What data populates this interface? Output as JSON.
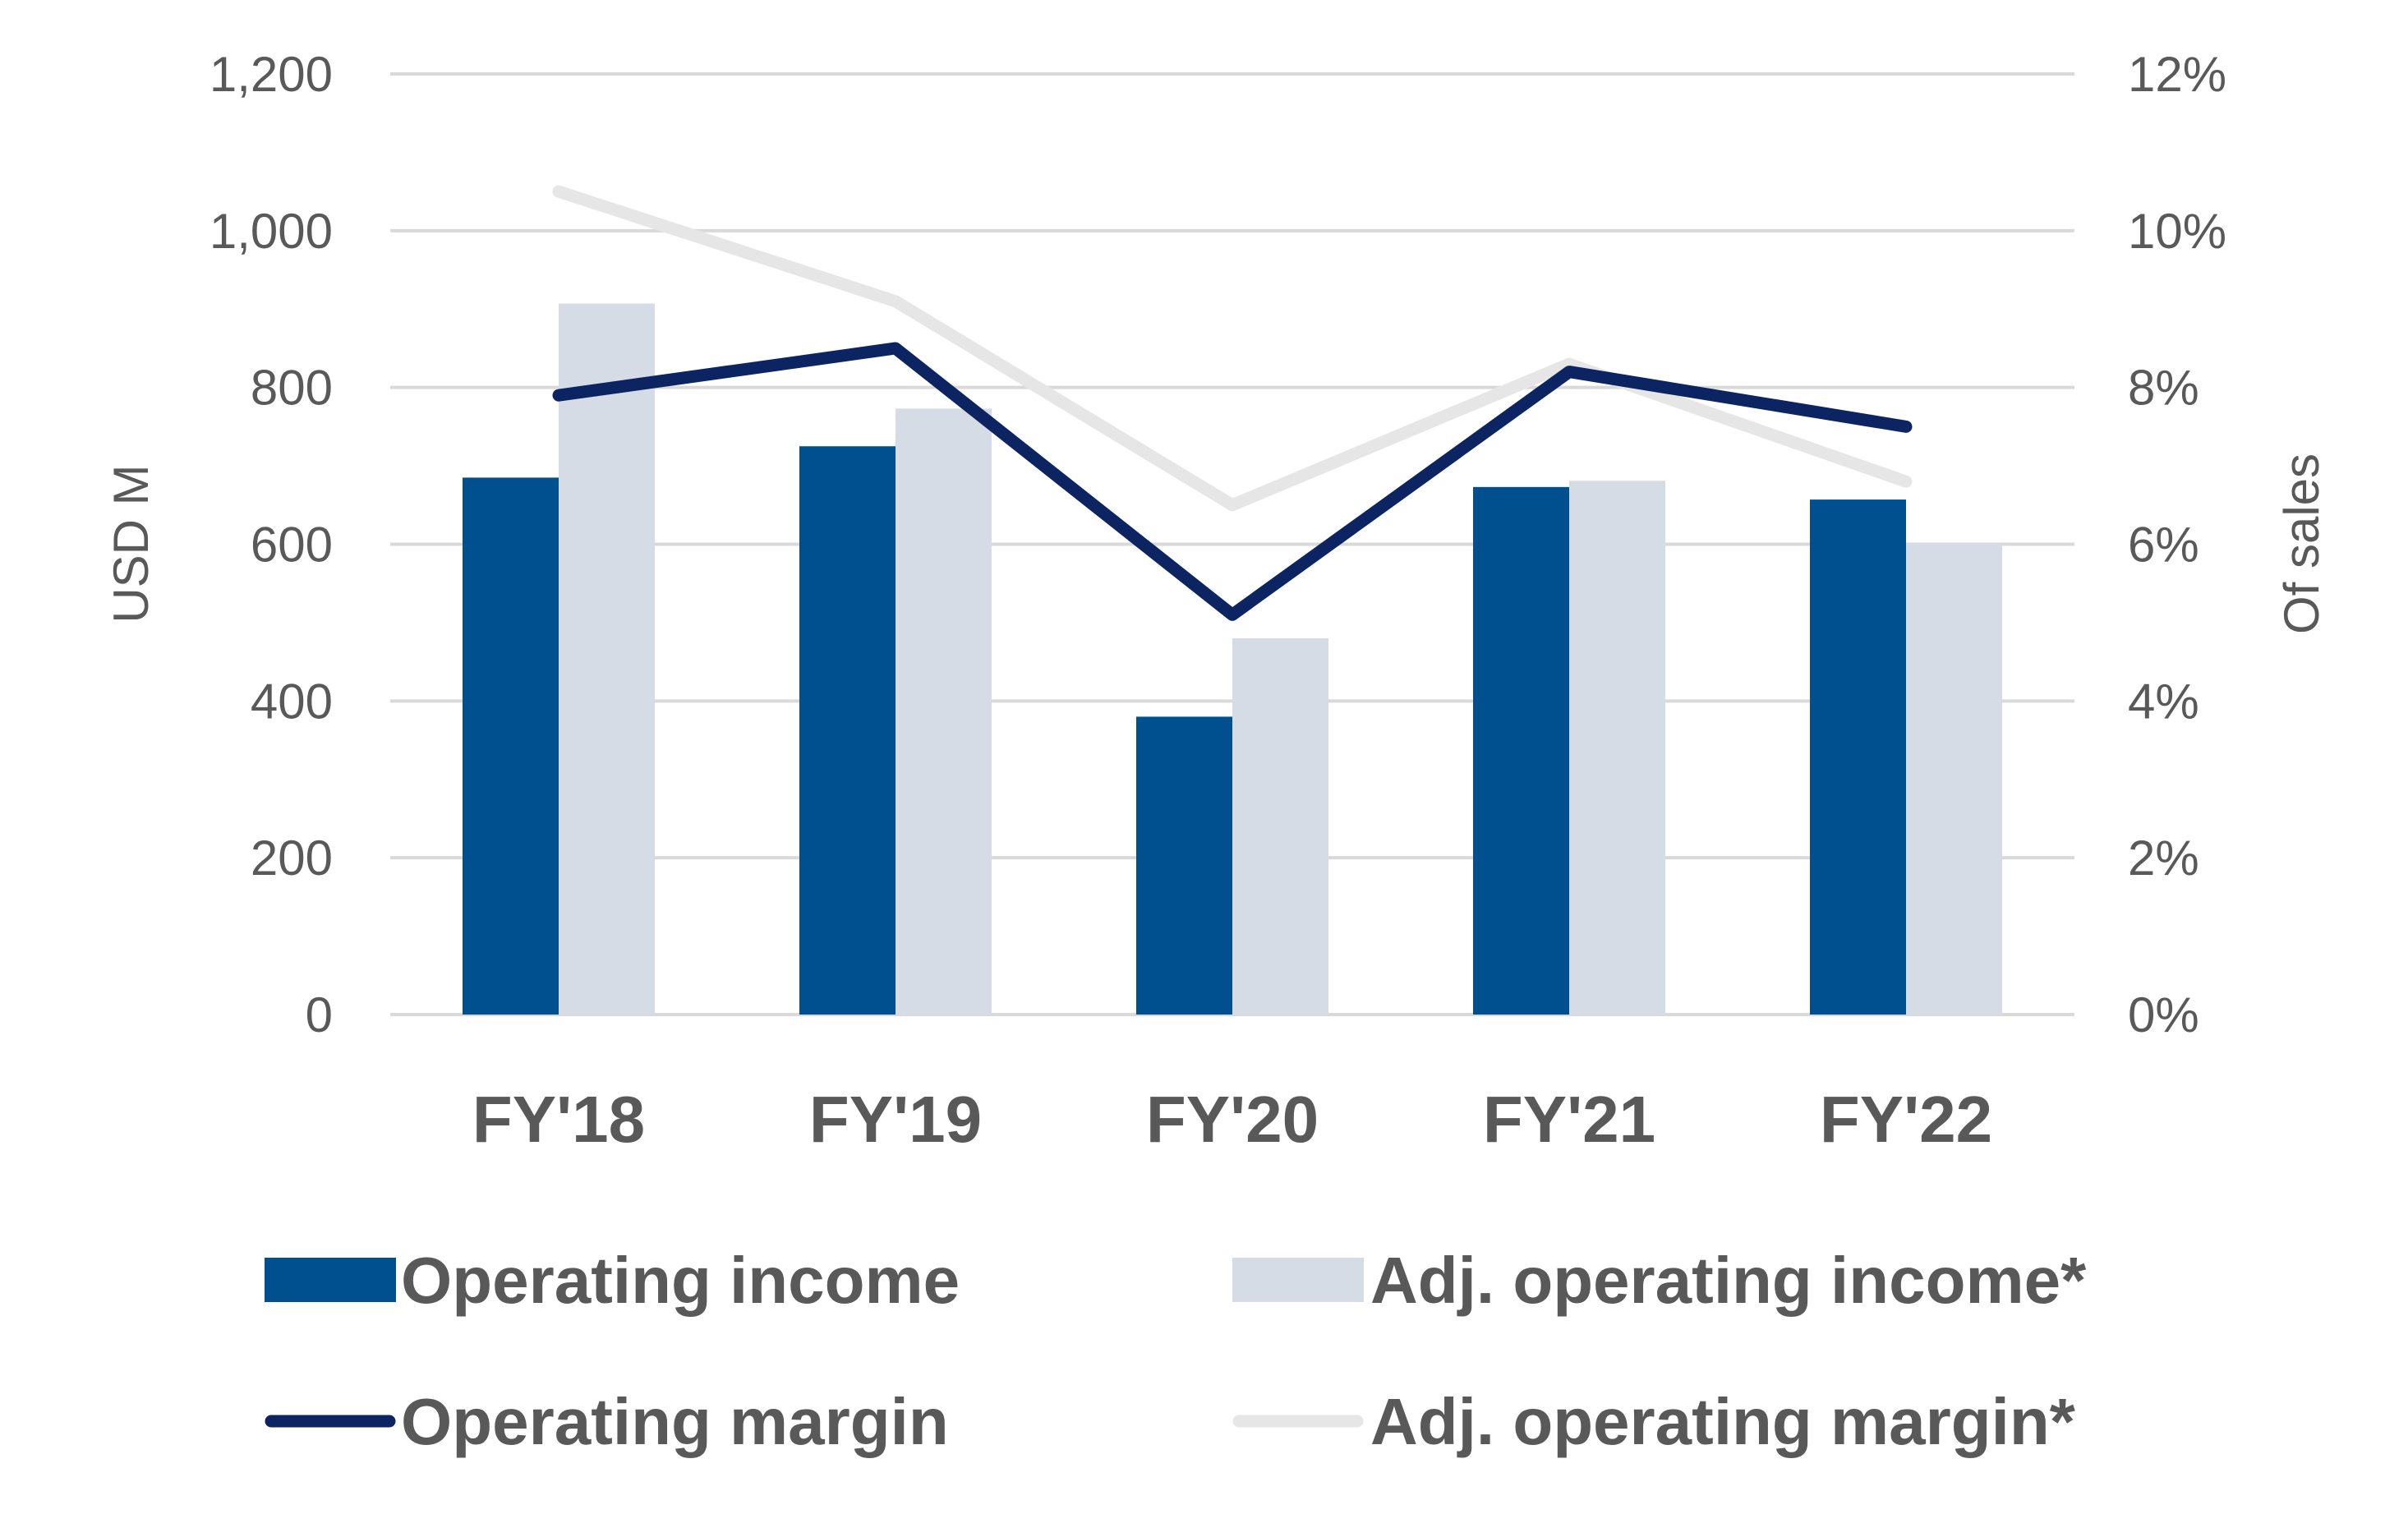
{
  "chart_data": {
    "type": "bar",
    "categories": [
      "FY'18",
      "FY'19",
      "FY'20",
      "FY'21",
      "FY'22"
    ],
    "series": [
      {
        "name": "Operating income",
        "kind": "bar",
        "axis": "left",
        "color": "#00508F",
        "values": [
          685,
          725,
          380,
          673,
          657
        ]
      },
      {
        "name": "Adj. operating income*",
        "kind": "bar",
        "axis": "left",
        "color": "#D6DCE5",
        "values": [
          907,
          773,
          480,
          681,
          602
        ]
      },
      {
        "name": "Operating margin",
        "kind": "line",
        "axis": "right",
        "color": "#0C2461",
        "values": [
          7.9,
          8.5,
          5.1,
          8.2,
          7.5
        ]
      },
      {
        "name": "Adj. operating margin*",
        "kind": "line",
        "axis": "right",
        "color": "#E6E6E6",
        "values": [
          10.5,
          9.1,
          6.5,
          8.3,
          6.8
        ]
      }
    ],
    "ylabel": "USD M",
    "ylabel_right": "Of sales",
    "ylim": [
      0,
      1200
    ],
    "ylim_right": [
      0,
      12
    ],
    "yticks": [
      "0",
      "200",
      "400",
      "600",
      "800",
      "1,000",
      "1,200"
    ],
    "yticks_right": [
      "0%",
      "2%",
      "4%",
      "6%",
      "8%",
      "10%",
      "12%"
    ],
    "grid": true,
    "gridline_color": "#D9D9D9",
    "legend_position": "bottom"
  }
}
